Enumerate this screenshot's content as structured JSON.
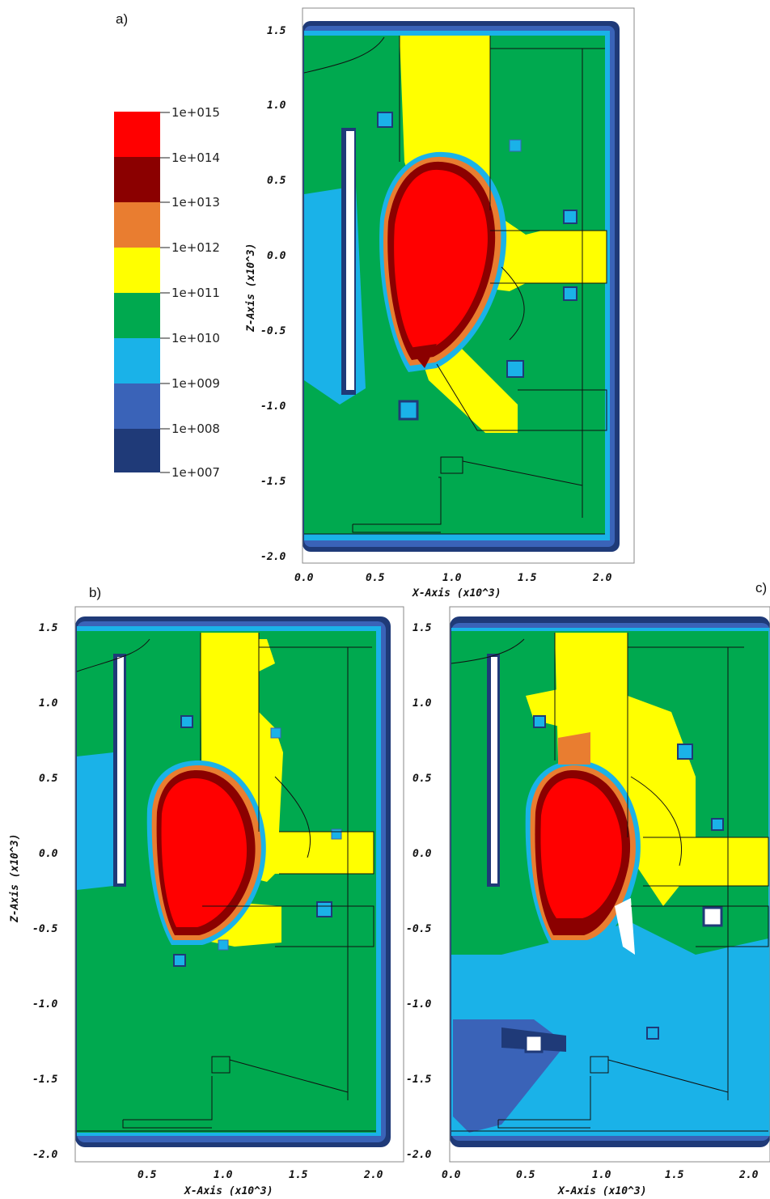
{
  "panels": [
    {
      "id": "a",
      "label": "a)",
      "x_label": "X-Axis (x10^3)",
      "y_label": "Z-Axis (x10^3)",
      "x_ticks": [
        "0.0",
        "0.5",
        "1.0",
        "1.5",
        "2.0"
      ],
      "y_ticks": [
        "1.5",
        "1.0",
        "0.5",
        "0.0",
        "-0.5",
        "-1.0",
        "-1.5",
        "-2.0"
      ]
    },
    {
      "id": "b",
      "label": "b)",
      "x_label": "X-Axis (x10^3)",
      "y_label": "Z-Axis (x10^3)",
      "x_ticks": [
        "0.5",
        "1.0",
        "1.5",
        "2.0"
      ],
      "y_ticks": [
        "1.5",
        "1.0",
        "0.5",
        "0.0",
        "-0.5",
        "-1.0",
        "-1.5",
        "-2.0"
      ]
    },
    {
      "id": "c",
      "label": "c)",
      "x_label": "X-Axis (x10^3)",
      "y_label": "",
      "x_ticks": [
        "0.0",
        "0.5",
        "1.0",
        "1.5",
        "2.0"
      ],
      "y_ticks": [
        "1.5",
        "1.0",
        "0.5",
        "0.0",
        "-0.5",
        "-1.0",
        "-1.5",
        "-2.0"
      ]
    }
  ],
  "colorbar": {
    "labels": [
      "1e+015",
      "1e+014",
      "1e+013",
      "1e+012",
      "1e+011",
      "1e+010",
      "1e+009",
      "1e+008",
      "1e+007"
    ],
    "colors": [
      "#ff0000",
      "#8b0000",
      "#e97d30",
      "#ffff00",
      "#00a94f",
      "#1ab2e8",
      "#3a63b8",
      "#1f3a78"
    ]
  },
  "colors": {
    "outer_dark": "#1f3a78",
    "outer_mid": "#3a63b8",
    "light_blue": "#1ab2e8",
    "green": "#00a94f",
    "yellow": "#ffff00",
    "orange": "#e97d30",
    "dark_red": "#8b0000",
    "red": "#ff0000"
  }
}
